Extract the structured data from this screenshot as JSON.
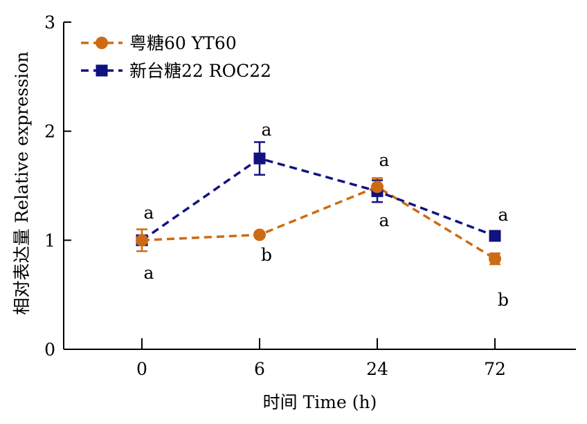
{
  "chart_data": {
    "type": "line",
    "xlabel": "时间 Time (h)",
    "ylabel": "相对表达量 Relative expression",
    "categories": [
      "0",
      "6",
      "24",
      "72"
    ],
    "ylim": [
      0,
      3
    ],
    "yticks": [
      "0",
      "1",
      "2",
      "3"
    ],
    "grid": false,
    "legend_position": "top-left",
    "series": [
      {
        "name": "粤糖60 YT60",
        "color": "#cd6a14",
        "marker": "circle",
        "line_style": "dashed",
        "values": [
          1.0,
          1.05,
          1.49,
          0.83
        ],
        "errors": [
          0.1,
          0.0,
          0.08,
          0.05
        ],
        "letters": [
          "a",
          "b",
          "a",
          "b"
        ]
      },
      {
        "name": "新台糖22 ROC22",
        "color": "#10127f",
        "marker": "square",
        "line_style": "dashed",
        "values": [
          1.0,
          1.75,
          1.45,
          1.04
        ],
        "errors": [
          0.0,
          0.15,
          0.1,
          0.0
        ],
        "letters": [
          "a",
          "a",
          "a",
          "a"
        ]
      }
    ]
  }
}
